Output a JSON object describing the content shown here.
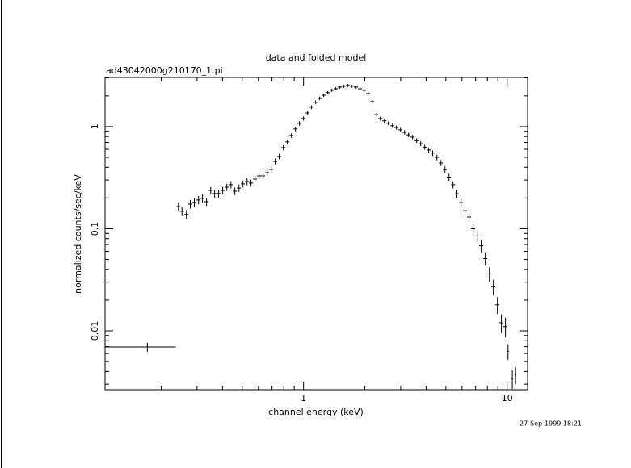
{
  "chart_data": {
    "type": "scatter",
    "title": "data and folded model",
    "subtitle": "ad43042000g210170_1.pi",
    "xlabel": "channel energy (keV)",
    "ylabel": "normalized counts/sec/keV",
    "timestamp": "27-Sep-1999 18:21",
    "xlog": true,
    "ylog": true,
    "color": "#000000",
    "xlim": [
      0.106,
      12.6
    ],
    "ylim": [
      0.00265,
      3.03
    ],
    "xticks": [
      1,
      10
    ],
    "yticks": [
      0.01,
      0.1,
      1
    ],
    "x": [
      0.171,
      0.243,
      0.253,
      0.266,
      0.278,
      0.291,
      0.305,
      0.319,
      0.334,
      0.35,
      0.366,
      0.383,
      0.401,
      0.42,
      0.44,
      0.46,
      0.482,
      0.504,
      0.528,
      0.552,
      0.578,
      0.605,
      0.633,
      0.663,
      0.694,
      0.726,
      0.76,
      0.796,
      0.833,
      0.872,
      0.913,
      0.955,
      1.0,
      1.047,
      1.095,
      1.147,
      1.2,
      1.256,
      1.315,
      1.377,
      1.441,
      1.508,
      1.579,
      1.653,
      1.73,
      1.811,
      1.896,
      1.984,
      2.077,
      2.174,
      2.276,
      2.382,
      2.494,
      2.61,
      2.732,
      2.86,
      2.994,
      3.134,
      3.28,
      3.434,
      3.594,
      3.762,
      3.938,
      4.12,
      4.31,
      4.52,
      4.73,
      4.95,
      5.18,
      5.42,
      5.67,
      5.94,
      6.21,
      6.5,
      6.81,
      7.13,
      7.46,
      7.81,
      8.18,
      8.56,
      8.96,
      9.37,
      9.81,
      10.1,
      10.6,
      11.0
    ],
    "x_err": [
      0.065,
      0.0056,
      0.0058,
      0.0061,
      0.0064,
      0.0067,
      0.007,
      0.0073,
      0.0077,
      0.008,
      0.0084,
      0.0088,
      0.0092,
      0.0097,
      0.0101,
      0.0106,
      0.0111,
      0.0116,
      0.0121,
      0.0127,
      0.0133,
      0.0139,
      0.0146,
      0.0152,
      0.016,
      0.0167,
      0.0175,
      0.0183,
      0.0192,
      0.0201,
      0.021,
      0.022,
      0.023,
      0.024,
      0.025,
      0.026,
      0.028,
      0.029,
      0.03,
      0.032,
      0.033,
      0.035,
      0.036,
      0.038,
      0.04,
      0.042,
      0.044,
      0.046,
      0.048,
      0.05,
      0.052,
      0.055,
      0.057,
      0.06,
      0.063,
      0.066,
      0.069,
      0.072,
      0.075,
      0.079,
      0.083,
      0.087,
      0.091,
      0.095,
      0.099,
      0.104,
      0.109,
      0.114,
      0.119,
      0.125,
      0.13,
      0.137,
      0.143,
      0.15,
      0.157,
      0.164,
      0.172,
      0.18,
      0.188,
      0.197,
      0.206,
      0.216,
      0.226,
      0.1,
      0.1,
      0.1
    ],
    "values": [
      0.00695,
      0.165,
      0.148,
      0.138,
      0.174,
      0.181,
      0.191,
      0.198,
      0.184,
      0.237,
      0.221,
      0.221,
      0.237,
      0.255,
      0.27,
      0.233,
      0.25,
      0.275,
      0.29,
      0.28,
      0.306,
      0.329,
      0.329,
      0.354,
      0.381,
      0.457,
      0.51,
      0.623,
      0.708,
      0.819,
      0.947,
      1.076,
      1.2,
      1.36,
      1.55,
      1.73,
      1.89,
      2.03,
      2.15,
      2.27,
      2.35,
      2.44,
      2.49,
      2.53,
      2.49,
      2.44,
      2.35,
      2.27,
      2.11,
      1.76,
      1.31,
      1.2,
      1.14,
      1.08,
      1.02,
      0.98,
      0.93,
      0.88,
      0.83,
      0.79,
      0.73,
      0.68,
      0.63,
      0.59,
      0.55,
      0.5,
      0.44,
      0.38,
      0.32,
      0.27,
      0.22,
      0.18,
      0.15,
      0.13,
      0.1,
      0.085,
      0.068,
      0.051,
      0.036,
      0.027,
      0.018,
      0.012,
      0.011,
      0.0063,
      0.0034,
      0.0037
    ],
    "y_err": [
      0.0007,
      0.016,
      0.015,
      0.014,
      0.017,
      0.017,
      0.018,
      0.018,
      0.017,
      0.02,
      0.019,
      0.019,
      0.02,
      0.021,
      0.022,
      0.02,
      0.021,
      0.022,
      0.023,
      0.022,
      0.024,
      0.025,
      0.025,
      0.026,
      0.028,
      0.03,
      0.032,
      0.037,
      0.04,
      0.045,
      0.05,
      0.054,
      0.058,
      0.063,
      0.068,
      0.072,
      0.075,
      0.078,
      0.08,
      0.083,
      0.085,
      0.087,
      0.088,
      0.089,
      0.088,
      0.087,
      0.085,
      0.083,
      0.08,
      0.07,
      0.055,
      0.052,
      0.05,
      0.048,
      0.046,
      0.045,
      0.044,
      0.043,
      0.042,
      0.041,
      0.039,
      0.038,
      0.036,
      0.035,
      0.034,
      0.032,
      0.03,
      0.028,
      0.025,
      0.022,
      0.02,
      0.017,
      0.015,
      0.014,
      0.012,
      0.011,
      0.0095,
      0.0075,
      0.0058,
      0.0046,
      0.0034,
      0.0025,
      0.0024,
      0.0011,
      0.0007,
      0.0007
    ]
  }
}
